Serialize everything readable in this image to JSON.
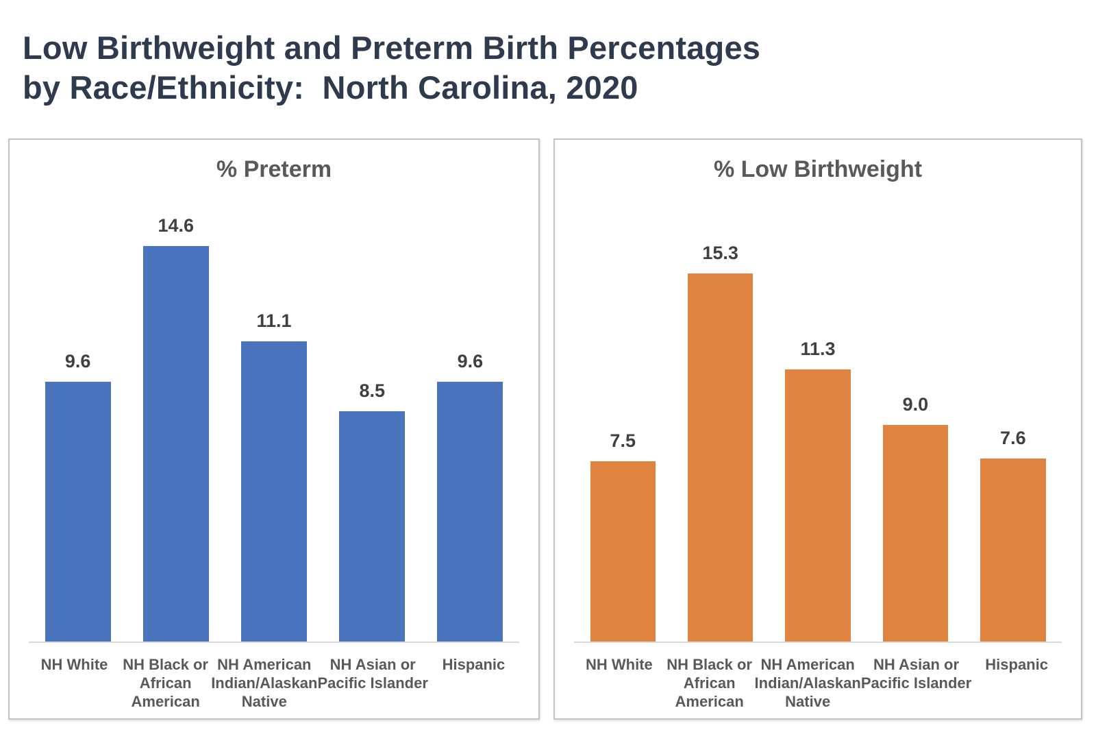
{
  "page_title": "Low Birthweight and Preterm Birth Percentages\nby Race/Ethnicity:  North Carolina, 2020",
  "colors": {
    "title_text": "#2e3a4d",
    "chart_title_text": "#595959",
    "value_label_text": "#404040",
    "category_label_text": "#595959",
    "preterm_bar": "#4a73be",
    "low_birthweight_bar": "#e08240",
    "axis_line": "#d9d9d9",
    "panel_border": "#c4c4c4"
  },
  "chart_data": [
    {
      "type": "bar",
      "title": "% Preterm",
      "bar_color": "#4a73be",
      "categories": [
        "NH White",
        "NH Black or African American",
        "NH American Indian/Alaskan Native",
        "NH Asian or Pacific Islander",
        "Hispanic"
      ],
      "category_lines": [
        [
          "NH White"
        ],
        [
          "NH Black or",
          "African",
          "American"
        ],
        [
          "NH American",
          "Indian/Alaskan",
          "Native"
        ],
        [
          "NH Asian or",
          "Pacific Islander"
        ],
        [
          "Hispanic"
        ]
      ],
      "values": [
        9.6,
        14.6,
        11.1,
        8.5,
        9.6
      ],
      "labels": [
        "9.6",
        "14.6",
        "11.1",
        "8.5",
        "9.6"
      ],
      "ylim": [
        0,
        16
      ],
      "grid": false,
      "legend": "none",
      "data_labels": "above-bars",
      "y_axis_visible": false
    },
    {
      "type": "bar",
      "title": "% Low Birthweight",
      "bar_color": "#e08240",
      "categories": [
        "NH White",
        "NH Black or African American",
        "NH American Indian/Alaskan Native",
        "NH Asian or Pacific Islander",
        "Hispanic"
      ],
      "category_lines": [
        [
          "NH White"
        ],
        [
          "NH Black or",
          "African",
          "American"
        ],
        [
          "NH American",
          "Indian/Alaskan",
          "Native"
        ],
        [
          "NH Asian or",
          "Pacific Islander"
        ],
        [
          "Hispanic"
        ]
      ],
      "values": [
        7.5,
        15.3,
        11.3,
        9.0,
        7.6
      ],
      "labels": [
        "7.5",
        "15.3",
        "11.3",
        "9.0",
        "7.6"
      ],
      "ylim": [
        0,
        18
      ],
      "grid": false,
      "legend": "none",
      "data_labels": "above-bars",
      "y_axis_visible": false
    }
  ]
}
